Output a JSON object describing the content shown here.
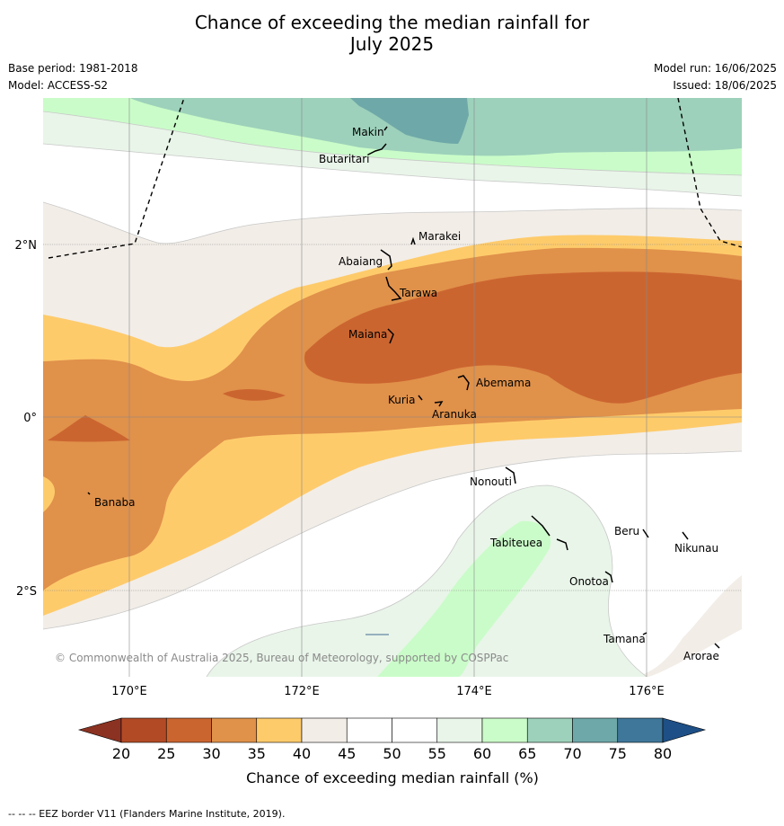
{
  "title_line1": "Chance of exceeding the median rainfall for",
  "title_line2": "July 2025",
  "base_period": "Base period: 1981-2018",
  "model": "Model: ACCESS-S2",
  "model_run": "Model run: 16/06/2025",
  "issued": "Issued: 18/06/2025",
  "lat_labels": [
    "2°N",
    "0°",
    "2°S"
  ],
  "lon_labels": [
    "170°E",
    "172°E",
    "174°E",
    "176°E"
  ],
  "places": [
    "Makin",
    "Butaritari",
    "Marakei",
    "Abaiang",
    "Tarawa",
    "Maiana",
    "Abemama",
    "Kuria",
    "Aranuka",
    "Banaba",
    "Nonouti",
    "Tabiteuea",
    "Beru",
    "Nikunau",
    "Onotoa",
    "Tamana",
    "Arorae"
  ],
  "copyright": "© Commonwealth of Australia 2025, Bureau of Meteorology, supported by COSPPac",
  "colorbar": {
    "ticks": [
      "20",
      "25",
      "30",
      "35",
      "40",
      "45",
      "50",
      "55",
      "60",
      "65",
      "70",
      "75",
      "80"
    ],
    "colors": [
      "#b34a26",
      "#cb6530",
      "#e0914a",
      "#fecb6b",
      "#f2ede7",
      "#ffffff",
      "#ffffff",
      "#e9f5e9",
      "#cafcc9",
      "#9dd1bb",
      "#6fa8a8",
      "#3f779a"
    ],
    "under_color": "#8b3222",
    "over_color": "#1e4f86",
    "label": "Chance of exceeding median rainfall (%)"
  },
  "footer": "--  --  -- EEZ border V11 (Flanders Marine Institute, 2019)."
}
